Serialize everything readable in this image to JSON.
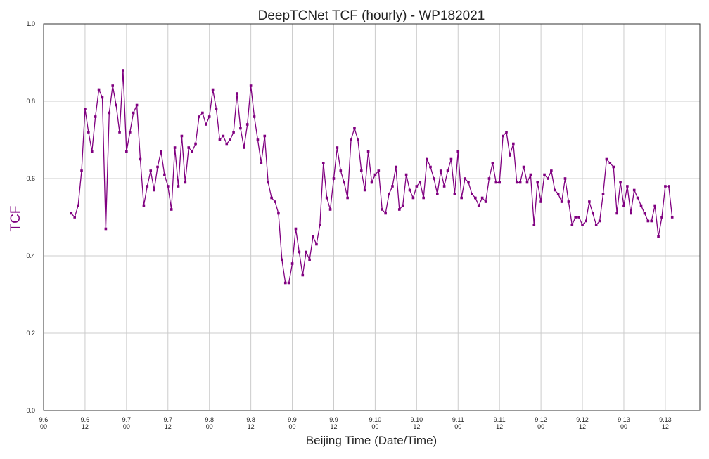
{
  "chart_data": {
    "type": "line",
    "title": "DeepTCNet TCF (hourly) - WP182021",
    "xlabel": "Beijing Time (Date/Time)",
    "ylabel": "TCF",
    "ylim": [
      0,
      1
    ],
    "yticks": [
      0.0,
      0.2,
      0.4,
      0.6,
      0.8,
      1.0
    ],
    "ytick_labels": [
      "0.0",
      "0.2",
      "0.4",
      "0.6",
      "0.8",
      "1.0"
    ],
    "x_unit": "hours since 9.6 00",
    "xlim": [
      0,
      190
    ],
    "xticks": [
      {
        "x": 0,
        "label1": "9.6",
        "label2": "00"
      },
      {
        "x": 12,
        "label1": "9.6",
        "label2": "12"
      },
      {
        "x": 24,
        "label1": "9.7",
        "label2": "00"
      },
      {
        "x": 36,
        "label1": "9.7",
        "label2": "12"
      },
      {
        "x": 48,
        "label1": "9.8",
        "label2": "00"
      },
      {
        "x": 60,
        "label1": "9.8",
        "label2": "12"
      },
      {
        "x": 72,
        "label1": "9.9",
        "label2": "00"
      },
      {
        "x": 84,
        "label1": "9.9",
        "label2": "12"
      },
      {
        "x": 96,
        "label1": "9.10",
        "label2": "00"
      },
      {
        "x": 108,
        "label1": "9.10",
        "label2": "12"
      },
      {
        "x": 120,
        "label1": "9.11",
        "label2": "00"
      },
      {
        "x": 132,
        "label1": "9.11",
        "label2": "12"
      },
      {
        "x": 144,
        "label1": "9.12",
        "label2": "00"
      },
      {
        "x": 156,
        "label1": "9.12",
        "label2": "12"
      },
      {
        "x": 168,
        "label1": "9.13",
        "label2": "00"
      },
      {
        "x": 180,
        "label1": "9.13",
        "label2": "12"
      }
    ],
    "grid": true,
    "line_color": "#800080",
    "ylabel_color": "#800080",
    "series": [
      {
        "x_start": 8,
        "x_step": 1,
        "values": [
          0.51,
          0.5,
          0.53,
          0.62,
          0.78,
          0.72,
          0.67,
          0.76,
          0.83,
          0.81,
          0.47,
          0.77,
          0.84,
          0.79,
          0.72,
          0.88,
          0.67,
          0.72,
          0.77,
          0.79,
          0.65,
          0.53,
          0.58,
          0.62,
          0.57,
          0.63,
          0.67,
          0.61,
          0.58,
          0.52,
          0.68,
          0.58,
          0.71,
          0.59,
          0.68,
          0.67,
          0.69,
          0.76,
          0.77,
          0.74,
          0.76,
          0.83,
          0.78,
          0.7,
          0.71,
          0.69,
          0.7,
          0.72,
          0.82,
          0.73,
          0.68,
          0.74,
          0.84,
          0.76,
          0.7,
          0.64,
          0.71,
          0.59,
          0.55,
          0.54,
          0.51,
          0.39,
          0.33,
          0.33,
          0.38,
          0.47,
          0.41,
          0.35,
          0.41,
          0.39,
          0.45,
          0.43,
          0.48,
          0.64,
          0.55,
          0.52,
          0.6,
          0.68,
          0.62,
          0.59,
          0.55,
          0.7,
          0.73,
          0.7,
          0.62,
          0.57,
          0.67,
          0.59,
          0.61,
          0.62,
          0.52,
          0.51,
          0.56,
          0.58,
          0.63,
          0.52,
          0.53,
          0.61,
          0.57,
          0.55,
          0.58,
          0.59,
          0.55,
          0.65,
          0.63,
          0.6,
          0.56,
          0.62,
          0.58,
          0.62,
          0.65,
          0.56,
          0.67,
          0.55,
          0.6,
          0.59,
          0.56,
          0.55,
          0.53,
          0.55,
          0.54,
          0.6,
          0.64,
          0.59,
          0.59,
          0.71,
          0.72,
          0.66,
          0.69,
          0.59,
          0.59,
          0.63,
          0.59,
          0.61,
          0.48,
          0.59,
          0.54,
          0.61,
          0.6,
          0.62,
          0.57,
          0.56,
          0.54,
          0.6,
          0.54,
          0.48,
          0.5,
          0.5,
          0.48,
          0.49,
          0.54,
          0.51,
          0.48,
          0.49,
          0.56,
          0.65,
          0.64,
          0.63,
          0.51,
          0.59,
          0.53,
          0.58,
          0.51,
          0.57,
          0.55,
          0.53,
          0.51,
          0.49,
          0.49,
          0.53,
          0.45,
          0.5,
          0.58,
          0.58,
          0.5
        ]
      }
    ]
  }
}
